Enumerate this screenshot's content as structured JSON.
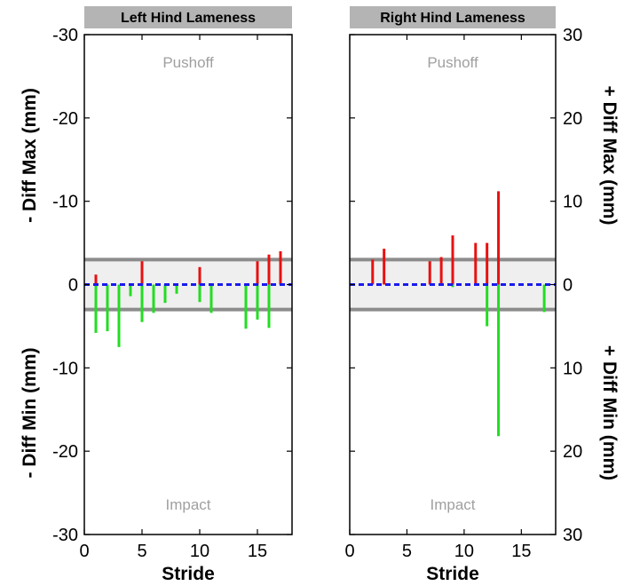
{
  "chart_data": [
    {
      "type": "bar",
      "title": "Left Hind Lameness",
      "xlabel": "Stride",
      "ylabel_top": "- Diff Max (mm)",
      "ylabel_bottom": "- Diff Min (mm)",
      "xlim": [
        0,
        18
      ],
      "ylim": [
        -30,
        30
      ],
      "xticks": [
        0,
        5,
        10,
        15
      ],
      "yticks": [
        -30,
        -20,
        -10,
        0,
        -10,
        -20,
        -30
      ],
      "band": [
        -3,
        3
      ],
      "annotations": {
        "top": "Pushoff",
        "bottom": "Impact"
      },
      "series": [
        {
          "name": "max",
          "color": "#e81010",
          "x": [
            1,
            5,
            10,
            15,
            16,
            17
          ],
          "values": [
            1.2,
            2.8,
            2.1,
            2.8,
            3.6,
            4.0
          ]
        },
        {
          "name": "min",
          "color": "#22dd22",
          "x": [
            1,
            2,
            3,
            4,
            5,
            6,
            7,
            8,
            10,
            11,
            14,
            15,
            16
          ],
          "values": [
            -5.8,
            -5.6,
            -7.5,
            -1.4,
            -4.5,
            -3.4,
            -2.2,
            -1.1,
            -2.1,
            -3.4,
            -5.3,
            -4.2,
            -5.2
          ]
        }
      ]
    },
    {
      "type": "bar",
      "title": "Right Hind Lameness",
      "xlabel": "Stride",
      "ylabel_top": "+ Diff Max (mm)",
      "ylabel_bottom": "+ Diff Min (mm)",
      "xlim": [
        0,
        18
      ],
      "ylim": [
        -30,
        30
      ],
      "xticks": [
        0,
        5,
        10,
        15
      ],
      "yticks": [
        30,
        20,
        10,
        0,
        10,
        20,
        30
      ],
      "band": [
        -3,
        3
      ],
      "annotations": {
        "top": "Pushoff",
        "bottom": "Impact"
      },
      "series": [
        {
          "name": "max",
          "color": "#e81010",
          "x": [
            2,
            3,
            7,
            8,
            9,
            11,
            12,
            13
          ],
          "values": [
            3.0,
            4.3,
            2.8,
            3.3,
            5.9,
            5.0,
            5.0,
            11.2
          ]
        },
        {
          "name": "min",
          "color": "#22dd22",
          "x": [
            9,
            12,
            13,
            17
          ],
          "values": [
            -0.3,
            -5.0,
            -18.2,
            -3.3
          ]
        }
      ]
    }
  ]
}
